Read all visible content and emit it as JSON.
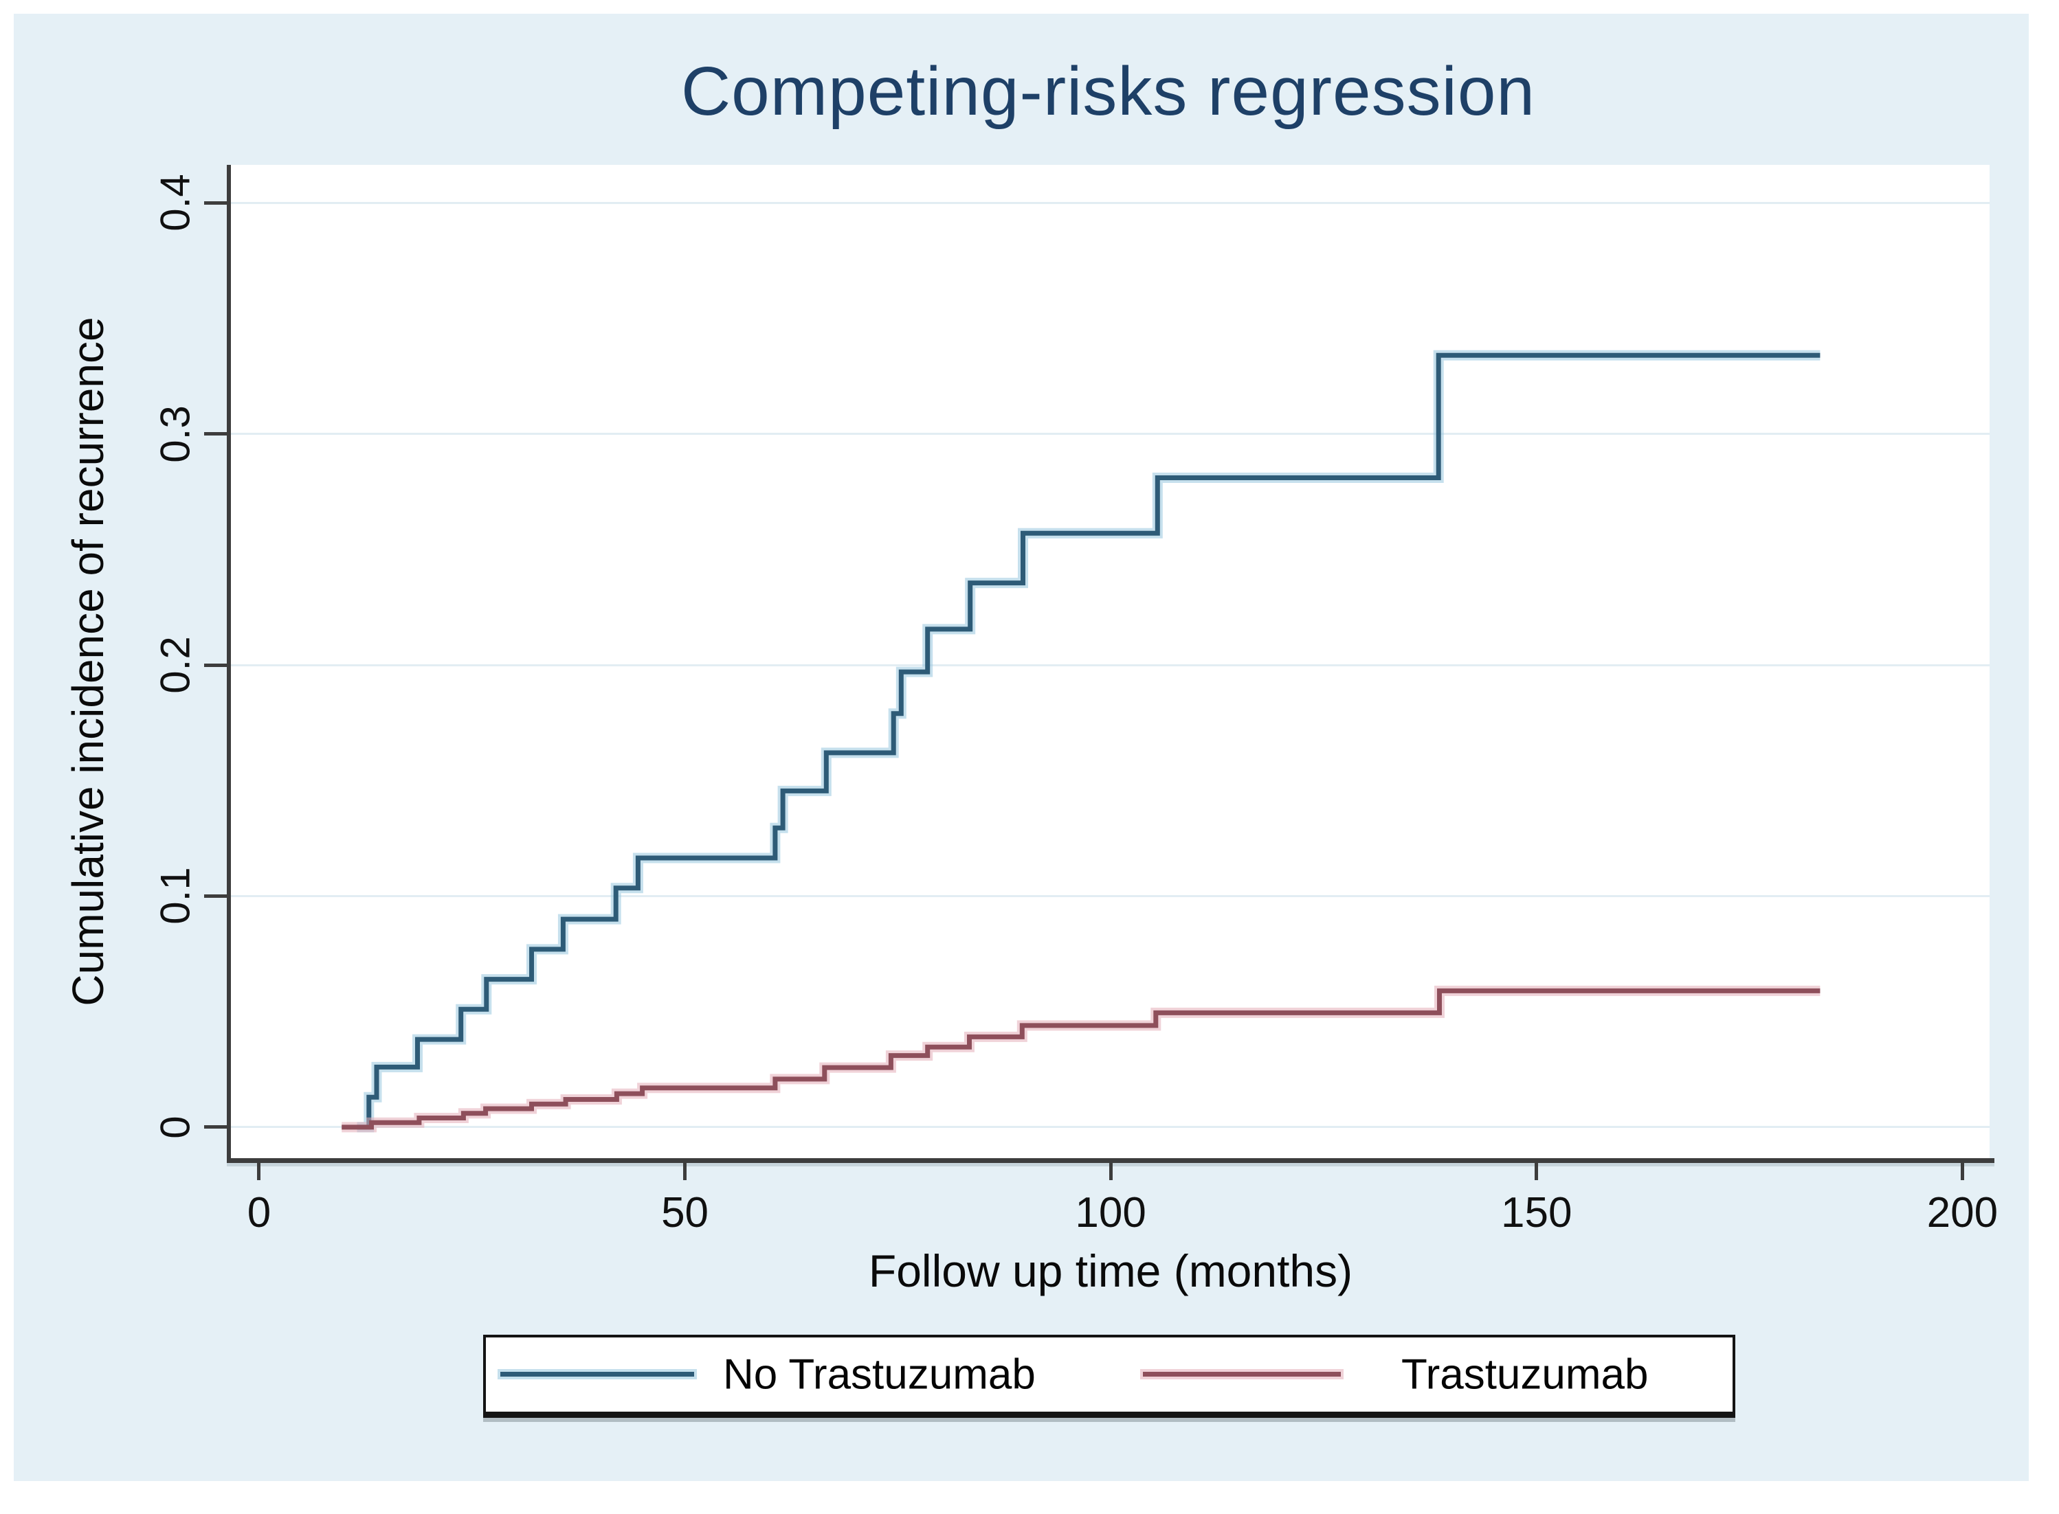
{
  "title": "Competing-risks regression",
  "axes": {
    "x_title": "Follow up time (months)",
    "y_title": "Cumulative incidence of recurrence"
  },
  "legend": {
    "items": [
      {
        "label": "No Trastuzumab",
        "color": "#2e5b77"
      },
      {
        "label": "Trastuzumab",
        "color": "#8e4f5b"
      }
    ]
  },
  "colors": {
    "panel_background": "#e5f0f6",
    "plot_background": "#ffffff",
    "axis": "#3d3d3d",
    "gridline": "#e2edf3",
    "title_text": "#1e4067",
    "tick_text": "#101010",
    "blue_series": "#2e5b77",
    "blue_halo": "rgba(151,198,223,0.55)",
    "red_series": "#8e4f5b",
    "red_halo": "rgba(228,173,184,0.55)"
  },
  "chart_data": {
    "type": "line",
    "subtype": "step-cumulative-incidence",
    "title": "Competing-risks regression",
    "xlabel": "Follow up time (months)",
    "ylabel": "Cumulative incidence of recurrence",
    "xlim": [
      -3.79,
      203.2
    ],
    "ylim": [
      -0.0134,
      0.4164
    ],
    "grid": "horizontal",
    "legend_position": "bottom",
    "x_ticks": [
      {
        "value": 0,
        "label": "0"
      },
      {
        "value": 50,
        "label": "50"
      },
      {
        "value": 100,
        "label": "100"
      },
      {
        "value": 150,
        "label": "150"
      },
      {
        "value": 200,
        "label": "200"
      }
    ],
    "y_ticks": [
      {
        "value": 0.0,
        "label": "0"
      },
      {
        "value": 0.1,
        "label": "0.1"
      },
      {
        "value": 0.2,
        "label": "0.2"
      },
      {
        "value": 0.3,
        "label": "0.3"
      },
      {
        "value": 0.4,
        "label": "0.4"
      }
    ],
    "series": [
      {
        "name": "No Trastuzumab",
        "color": "#2e5b77",
        "halo": "rgba(151,198,223,0.55)",
        "start": [
          11.5,
          0
        ],
        "steps": [
          [
            12.9,
            0.013
          ],
          [
            13.8,
            0.026
          ],
          [
            18.6,
            0.038
          ],
          [
            23.7,
            0.051
          ],
          [
            26.7,
            0.064
          ],
          [
            32.0,
            0.077
          ],
          [
            35.7,
            0.09
          ],
          [
            41.9,
            0.1035
          ],
          [
            44.5,
            0.1165
          ],
          [
            60.6,
            0.1295
          ],
          [
            61.5,
            0.1455
          ],
          [
            66.6,
            0.162
          ],
          [
            74.5,
            0.179
          ],
          [
            75.4,
            0.197
          ],
          [
            78.5,
            0.2155
          ],
          [
            83.5,
            0.2355
          ],
          [
            89.7,
            0.257
          ],
          [
            105.5,
            0.281
          ],
          [
            138.5,
            0.334
          ]
        ],
        "end_time": 183.3,
        "final_value": 0.334
      },
      {
        "name": "Trastuzumab",
        "color": "#8e4f5b",
        "halo": "rgba(228,173,184,0.55)",
        "start": [
          9.7,
          0
        ],
        "steps": [
          [
            13.2,
            0.002
          ],
          [
            18.8,
            0.004
          ],
          [
            24.0,
            0.006
          ],
          [
            26.6,
            0.008
          ],
          [
            32.0,
            0.01
          ],
          [
            36.0,
            0.012
          ],
          [
            42.0,
            0.0145
          ],
          [
            45.0,
            0.017
          ],
          [
            60.6,
            0.0208
          ],
          [
            66.4,
            0.0258
          ],
          [
            74.2,
            0.031
          ],
          [
            78.5,
            0.0347
          ],
          [
            83.4,
            0.0391
          ],
          [
            89.6,
            0.044
          ],
          [
            105.3,
            0.0495
          ],
          [
            138.6,
            0.059
          ]
        ],
        "end_time": 183.3,
        "final_value": 0.059
      }
    ]
  }
}
